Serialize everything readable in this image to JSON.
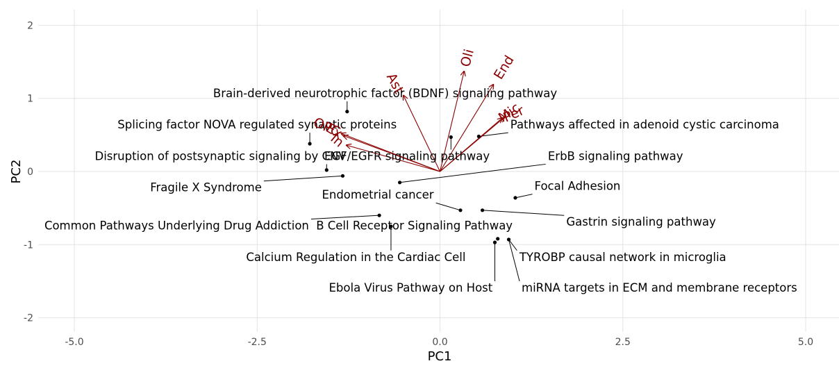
{
  "chart_data": {
    "type": "scatter",
    "subtype": "biplot",
    "xlabel": "PC1",
    "ylabel": "PC2",
    "xlim": [
      -5.25,
      5.25
    ],
    "ylim": [
      -2.2,
      2.2
    ],
    "x_ticks": [
      {
        "value": -5,
        "label": "-5.0"
      },
      {
        "value": -2.5,
        "label": "-2.5"
      },
      {
        "value": 0,
        "label": "0.0"
      },
      {
        "value": 2.5,
        "label": "2.5"
      },
      {
        "value": 5,
        "label": "5.0"
      }
    ],
    "y_ticks": [
      {
        "value": -2,
        "label": "-2"
      },
      {
        "value": -1,
        "label": "-1"
      },
      {
        "value": 0,
        "label": "0"
      },
      {
        "value": 1,
        "label": "1"
      },
      {
        "value": 2,
        "label": "2"
      }
    ],
    "grid": true,
    "colors": {
      "points": "#000000",
      "vectors": "#8b0000",
      "grid": "#e3e3e3"
    },
    "points": [
      {
        "label": "Brain-derived neurotrophic factor (BDNF) signaling pathway",
        "x": -1.27,
        "y": 0.82,
        "lx": -0.75,
        "ly": 1.06
      },
      {
        "label": "Splicing factor NOVA regulated synaptic proteins",
        "x": -1.78,
        "y": 0.38,
        "lx": -2.5,
        "ly": 0.63
      },
      {
        "label": "Disruption of postsynaptic signaling by CNV",
        "x": -1.55,
        "y": 0.02,
        "lx": -3.0,
        "ly": 0.2
      },
      {
        "label": "EGF/EGFR signaling pathway",
        "x": 0.15,
        "y": 0.47,
        "lx": -0.45,
        "ly": 0.2
      },
      {
        "label": "Pathways affected in adenoid cystic carcinoma",
        "x": 0.53,
        "y": 0.48,
        "lx": 2.8,
        "ly": 0.63
      },
      {
        "label": "ErbB signaling pathway",
        "x": -0.55,
        "y": -0.15,
        "lx": 2.4,
        "ly": 0.2
      },
      {
        "label": "Fragile X Syndrome",
        "x": -1.33,
        "y": -0.06,
        "lx": -3.2,
        "ly": -0.23
      },
      {
        "label": "Endometrial cancer",
        "x": 0.28,
        "y": -0.53,
        "lx": -0.85,
        "ly": -0.33
      },
      {
        "label": "Focal Adhesion",
        "x": 1.03,
        "y": -0.36,
        "lx": 1.88,
        "ly": -0.21
      },
      {
        "label": "Gastrin signaling pathway",
        "x": 0.58,
        "y": -0.53,
        "lx": 2.75,
        "ly": -0.7
      },
      {
        "label": "Common Pathways Underlying Drug Addiction",
        "x": -0.83,
        "y": -0.6,
        "lx": -3.6,
        "ly": -0.75
      },
      {
        "label": "B Cell Receptor Signaling Pathway",
        "x": 0.79,
        "y": -0.92,
        "lx": -0.35,
        "ly": -0.75
      },
      {
        "label": "Calcium Regulation in the Cardiac Cell",
        "x": -0.67,
        "y": -0.75,
        "lx": -1.15,
        "ly": -1.18
      },
      {
        "label": "TYROBP causal network in microglia",
        "x": 0.94,
        "y": -0.93,
        "lx": 2.5,
        "ly": -1.18
      },
      {
        "label": "Ebola Virus Pathway on Host",
        "x": 0.75,
        "y": -0.97,
        "lx": -0.4,
        "ly": -1.6
      },
      {
        "label": "miRNA targets in ECM and membrane receptors",
        "x": 0.94,
        "y": -0.93,
        "lx": 3.0,
        "ly": -1.6
      }
    ],
    "vectors": [
      {
        "label": "Oli",
        "x": 0.33,
        "y": 1.37,
        "lx": 0.38,
        "ly": 1.55,
        "angle": -75
      },
      {
        "label": "End",
        "x": 0.73,
        "y": 1.19,
        "lx": 0.88,
        "ly": 1.42,
        "angle": -58
      },
      {
        "label": "Ast",
        "x": -0.5,
        "y": 1.04,
        "lx": -0.62,
        "ly": 1.2,
        "angle": 62
      },
      {
        "label": "Mic",
        "x": 0.88,
        "y": 0.74,
        "lx": 0.95,
        "ly": 0.8,
        "angle": -35
      },
      {
        "label": "Per",
        "x": 0.85,
        "y": 0.73,
        "lx": 1.01,
        "ly": 0.78,
        "angle": -24
      },
      {
        "label": "OPC",
        "x": -1.35,
        "y": 0.52,
        "lx": -1.55,
        "ly": 0.6,
        "angle": 24
      },
      {
        "label": "Ex",
        "x": -1.32,
        "y": 0.49,
        "lx": -1.45,
        "ly": 0.55,
        "angle": 30
      },
      {
        "label": "In",
        "x": -1.28,
        "y": 0.36,
        "lx": -1.41,
        "ly": 0.42,
        "angle": 40
      }
    ]
  }
}
